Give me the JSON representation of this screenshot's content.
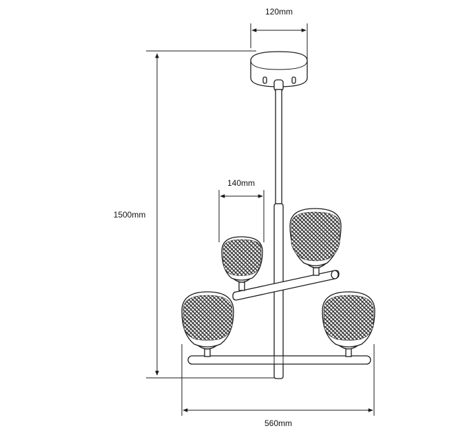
{
  "dimensions": {
    "canopy_width": "120mm",
    "total_height": "1500mm",
    "shade_width": "140mm",
    "total_width": "560mm"
  },
  "colors": {
    "line": "#1a1a1a",
    "shade_mesh": "#2a2a2a",
    "background": "#ffffff"
  }
}
